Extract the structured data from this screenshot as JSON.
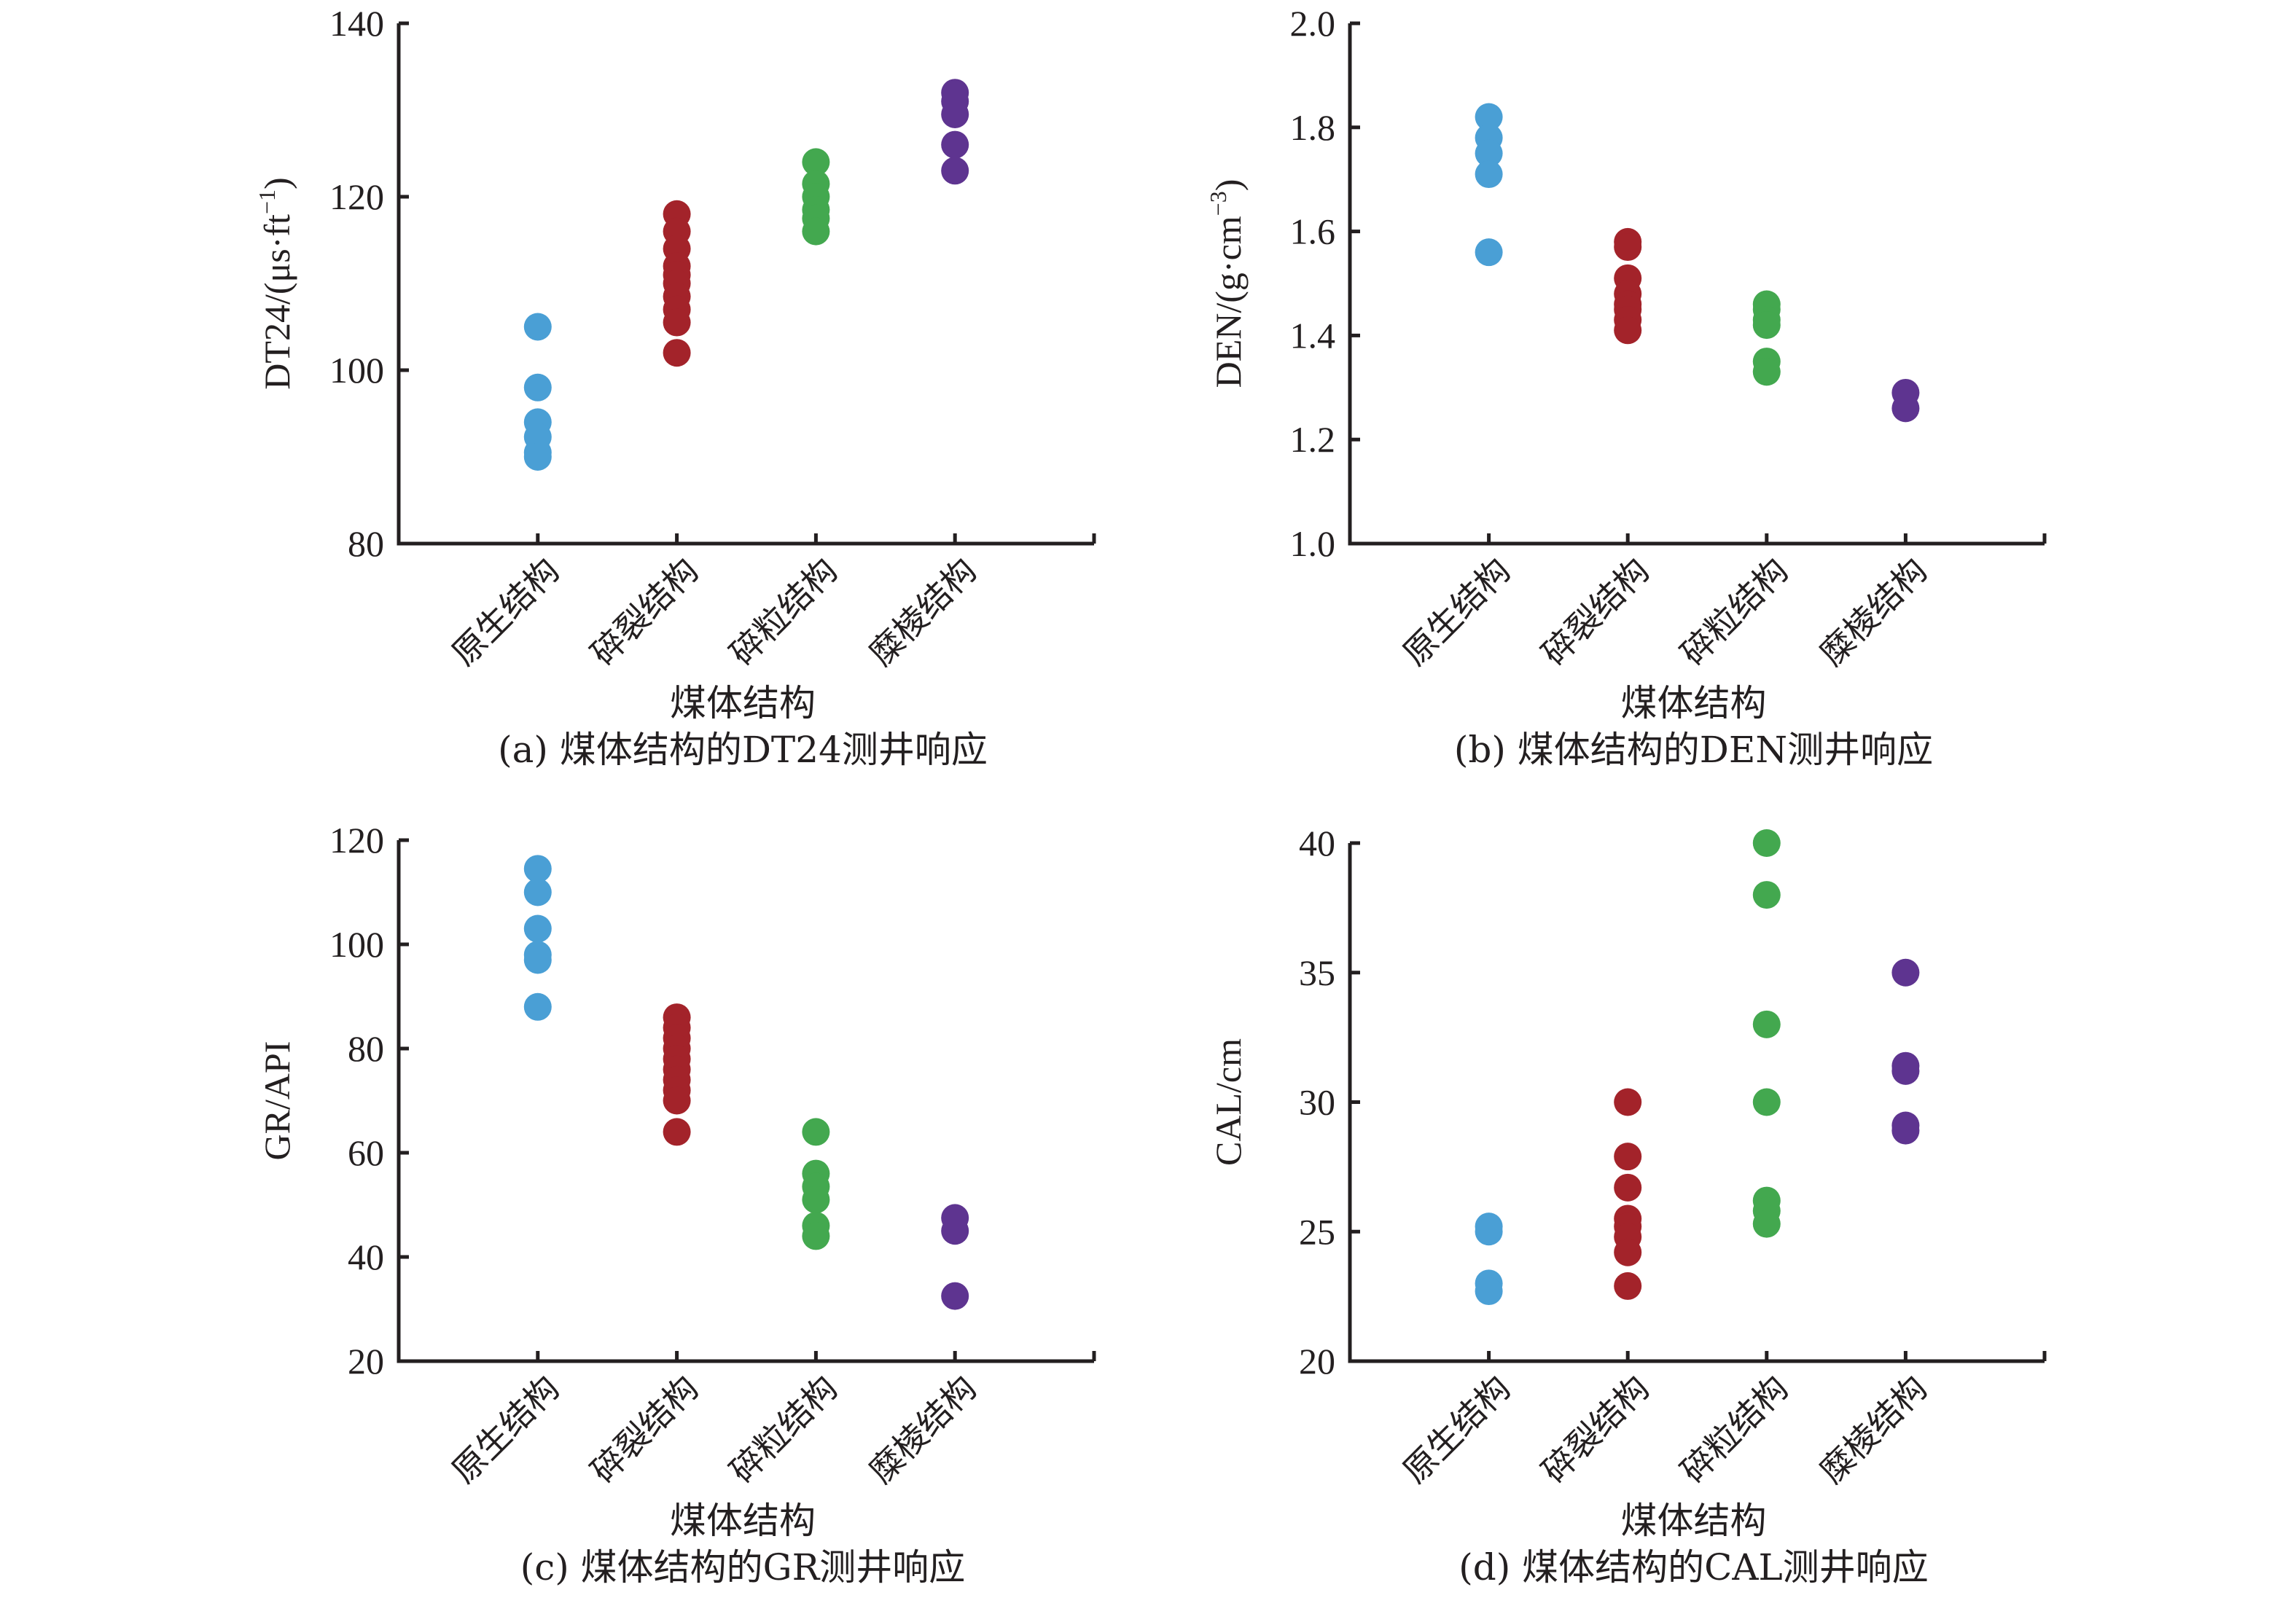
{
  "chart_data": [
    {
      "id": "a",
      "type": "scatter",
      "title": "(a) 煤体结构的DT24测井响应",
      "xlabel": "煤体结构",
      "ylabel": "DT24/(μs·ft⁻¹)",
      "ylabel_parts": {
        "base": "DT24/(μs·ft",
        "sup": "−1",
        "close": ")"
      },
      "categories": [
        "原生结构",
        "碎裂结构",
        "碎粒结构",
        "糜棱结构"
      ],
      "ylim": [
        80,
        140
      ],
      "yticks": [
        80,
        100,
        120,
        140
      ],
      "ytick_labels": [
        "80",
        "100",
        "120",
        "140"
      ],
      "grid": false,
      "series": [
        {
          "name": "原生结构",
          "color": "#4a9fd5",
          "values": [
            105,
            98,
            94,
            92.3,
            90.5,
            90
          ]
        },
        {
          "name": "碎裂结构",
          "color": "#a3232a",
          "values": [
            118,
            116,
            114,
            112,
            111,
            110,
            108.5,
            107,
            105.5,
            102
          ]
        },
        {
          "name": "碎粒结构",
          "color": "#43a84f",
          "values": [
            124,
            121.5,
            120,
            118.5,
            117.5,
            116
          ]
        },
        {
          "name": "糜棱结构",
          "color": "#5e3490",
          "values": [
            132,
            131,
            129.5,
            126,
            123
          ]
        }
      ]
    },
    {
      "id": "b",
      "type": "scatter",
      "title": "(b) 煤体结构的DEN测井响应",
      "xlabel": "煤体结构",
      "ylabel": "DEN/(g·cm⁻³)",
      "ylabel_parts": {
        "base": "DEN/(g·cm",
        "sup": "−3",
        "close": ")"
      },
      "categories": [
        "原生结构",
        "碎裂结构",
        "碎粒结构",
        "糜棱结构"
      ],
      "ylim": [
        1.0,
        2.0
      ],
      "yticks": [
        1.0,
        1.2,
        1.4,
        1.6,
        1.8,
        2.0
      ],
      "ytick_labels": [
        "1.0",
        "1.2",
        "1.4",
        "1.6",
        "1.8",
        "2.0"
      ],
      "grid": false,
      "series": [
        {
          "name": "原生结构",
          "color": "#4a9fd5",
          "values": [
            1.82,
            1.78,
            1.75,
            1.71,
            1.56
          ]
        },
        {
          "name": "碎裂结构",
          "color": "#a3232a",
          "values": [
            1.58,
            1.57,
            1.51,
            1.48,
            1.46,
            1.45,
            1.43,
            1.41
          ]
        },
        {
          "name": "碎粒结构",
          "color": "#43a84f",
          "values": [
            1.46,
            1.45,
            1.43,
            1.42,
            1.35,
            1.33
          ]
        },
        {
          "name": "糜棱结构",
          "color": "#5e3490",
          "values": [
            1.29,
            1.26
          ]
        }
      ]
    },
    {
      "id": "c",
      "type": "scatter",
      "title": "(c) 煤体结构的GR测井响应",
      "xlabel": "煤体结构",
      "ylabel": "GR/API",
      "ylabel_parts": {
        "base": "GR/API",
        "sup": "",
        "close": ""
      },
      "categories": [
        "原生结构",
        "碎裂结构",
        "碎粒结构",
        "糜棱结构"
      ],
      "ylim": [
        20,
        120
      ],
      "yticks": [
        20,
        40,
        60,
        80,
        100,
        120
      ],
      "ytick_labels": [
        "20",
        "40",
        "60",
        "80",
        "100",
        "120"
      ],
      "grid": false,
      "series": [
        {
          "name": "原生结构",
          "color": "#4a9fd5",
          "values": [
            114.5,
            110,
            103,
            98,
            97,
            88
          ]
        },
        {
          "name": "碎裂结构",
          "color": "#a3232a",
          "values": [
            86,
            84,
            82,
            80,
            78,
            76,
            74,
            72,
            70,
            64
          ]
        },
        {
          "name": "碎粒结构",
          "color": "#43a84f",
          "values": [
            64,
            56,
            53.5,
            51,
            46,
            44
          ]
        },
        {
          "name": "糜棱结构",
          "color": "#5e3490",
          "values": [
            47.5,
            45,
            32.5
          ]
        }
      ]
    },
    {
      "id": "d",
      "type": "scatter",
      "title": "(d) 煤体结构的CAL测井响应",
      "xlabel": "煤体结构",
      "ylabel": "CAL/cm",
      "ylabel_parts": {
        "base": "CAL/cm",
        "sup": "",
        "close": ""
      },
      "categories": [
        "原生结构",
        "碎裂结构",
        "碎粒结构",
        "糜棱结构"
      ],
      "ylim": [
        20,
        40
      ],
      "yticks": [
        20,
        25,
        30,
        35,
        40
      ],
      "ytick_labels": [
        "20",
        "25",
        "30",
        "35",
        "40"
      ],
      "grid": false,
      "series": [
        {
          "name": "原生结构",
          "color": "#4a9fd5",
          "values": [
            25.2,
            25,
            23,
            22.7
          ]
        },
        {
          "name": "碎裂结构",
          "color": "#a3232a",
          "values": [
            30,
            27.9,
            26.7,
            25.5,
            25.2,
            24.8,
            24.2,
            22.9
          ]
        },
        {
          "name": "碎粒结构",
          "color": "#43a84f",
          "values": [
            40,
            38,
            33,
            30,
            26.2,
            25.8,
            25.3
          ]
        },
        {
          "name": "糜棱结构",
          "color": "#5e3490",
          "values": [
            35,
            31.4,
            31.2,
            29.1,
            28.9
          ]
        }
      ]
    }
  ]
}
